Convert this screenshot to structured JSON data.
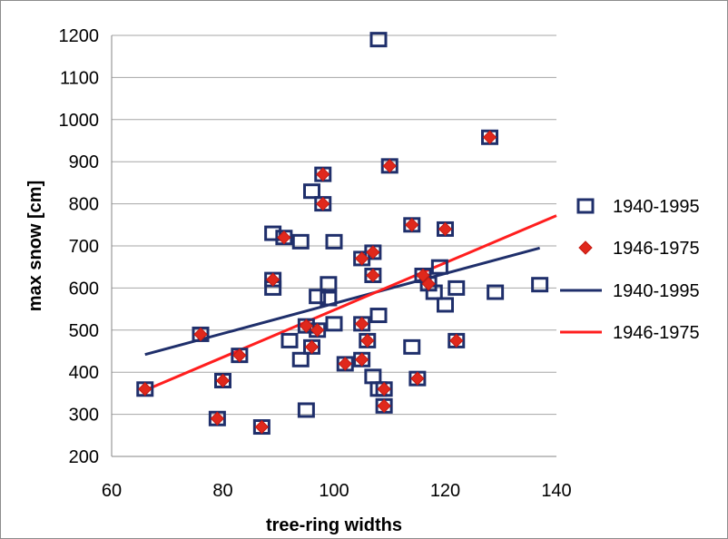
{
  "chart_data": {
    "type": "scatter",
    "xlabel": "tree-ring widths",
    "ylabel": "max snow [cm]",
    "xlim": [
      60,
      140
    ],
    "ylim": [
      200,
      1200
    ],
    "x_ticks": [
      60,
      80,
      100,
      120,
      140
    ],
    "y_ticks": [
      200,
      300,
      400,
      500,
      600,
      700,
      800,
      900,
      1000,
      1100,
      1200
    ],
    "grid": "horizontal",
    "legend_position": "right",
    "series": [
      {
        "name": "1940-1995",
        "kind": "points",
        "marker": "open-square",
        "color": "#1f2f6b",
        "points": [
          [
            66,
            360
          ],
          [
            76,
            490
          ],
          [
            79,
            290
          ],
          [
            80,
            380
          ],
          [
            83,
            440
          ],
          [
            87,
            270
          ],
          [
            89,
            730
          ],
          [
            89,
            600
          ],
          [
            89,
            620
          ],
          [
            91,
            720
          ],
          [
            92,
            475
          ],
          [
            94,
            710
          ],
          [
            94,
            430
          ],
          [
            95,
            510
          ],
          [
            95,
            310
          ],
          [
            96,
            830
          ],
          [
            96,
            460
          ],
          [
            97,
            580
          ],
          [
            97,
            500
          ],
          [
            98,
            870
          ],
          [
            98,
            800
          ],
          [
            99,
            610
          ],
          [
            99,
            575
          ],
          [
            100,
            710
          ],
          [
            100,
            515
          ],
          [
            102,
            420
          ],
          [
            105,
            670
          ],
          [
            105,
            515
          ],
          [
            105,
            430
          ],
          [
            106,
            475
          ],
          [
            107,
            685
          ],
          [
            107,
            630
          ],
          [
            107,
            390
          ],
          [
            108,
            1190
          ],
          [
            108,
            535
          ],
          [
            108,
            360
          ],
          [
            109,
            360
          ],
          [
            109,
            320
          ],
          [
            110,
            890
          ],
          [
            114,
            750
          ],
          [
            114,
            460
          ],
          [
            115,
            385
          ],
          [
            116,
            630
          ],
          [
            117,
            610
          ],
          [
            118,
            590
          ],
          [
            119,
            650
          ],
          [
            120,
            740
          ],
          [
            120,
            560
          ],
          [
            122,
            600
          ],
          [
            122,
            475
          ],
          [
            128,
            958
          ],
          [
            129,
            590
          ],
          [
            137,
            608
          ]
        ]
      },
      {
        "name": "1946-1975",
        "kind": "points",
        "marker": "diamond",
        "color": "#e0281c",
        "points": [
          [
            66,
            360
          ],
          [
            76,
            490
          ],
          [
            79,
            290
          ],
          [
            80,
            380
          ],
          [
            83,
            440
          ],
          [
            87,
            270
          ],
          [
            89,
            620
          ],
          [
            91,
            720
          ],
          [
            95,
            510
          ],
          [
            96,
            460
          ],
          [
            97,
            500
          ],
          [
            98,
            870
          ],
          [
            98,
            800
          ],
          [
            102,
            420
          ],
          [
            105,
            670
          ],
          [
            105,
            515
          ],
          [
            105,
            430
          ],
          [
            106,
            475
          ],
          [
            107,
            685
          ],
          [
            107,
            630
          ],
          [
            109,
            360
          ],
          [
            109,
            320
          ],
          [
            110,
            890
          ],
          [
            114,
            750
          ],
          [
            115,
            385
          ],
          [
            116,
            630
          ],
          [
            117,
            610
          ],
          [
            120,
            740
          ],
          [
            122,
            475
          ],
          [
            128,
            958
          ]
        ]
      },
      {
        "name": "1940-1995",
        "kind": "trendline",
        "color": "#1f2f6b",
        "points": [
          [
            66,
            442
          ],
          [
            137,
            695
          ]
        ]
      },
      {
        "name": "1946-1975",
        "kind": "trendline",
        "color": "#ff1e1e",
        "points": [
          [
            66,
            357
          ],
          [
            140,
            772
          ]
        ]
      }
    ]
  }
}
